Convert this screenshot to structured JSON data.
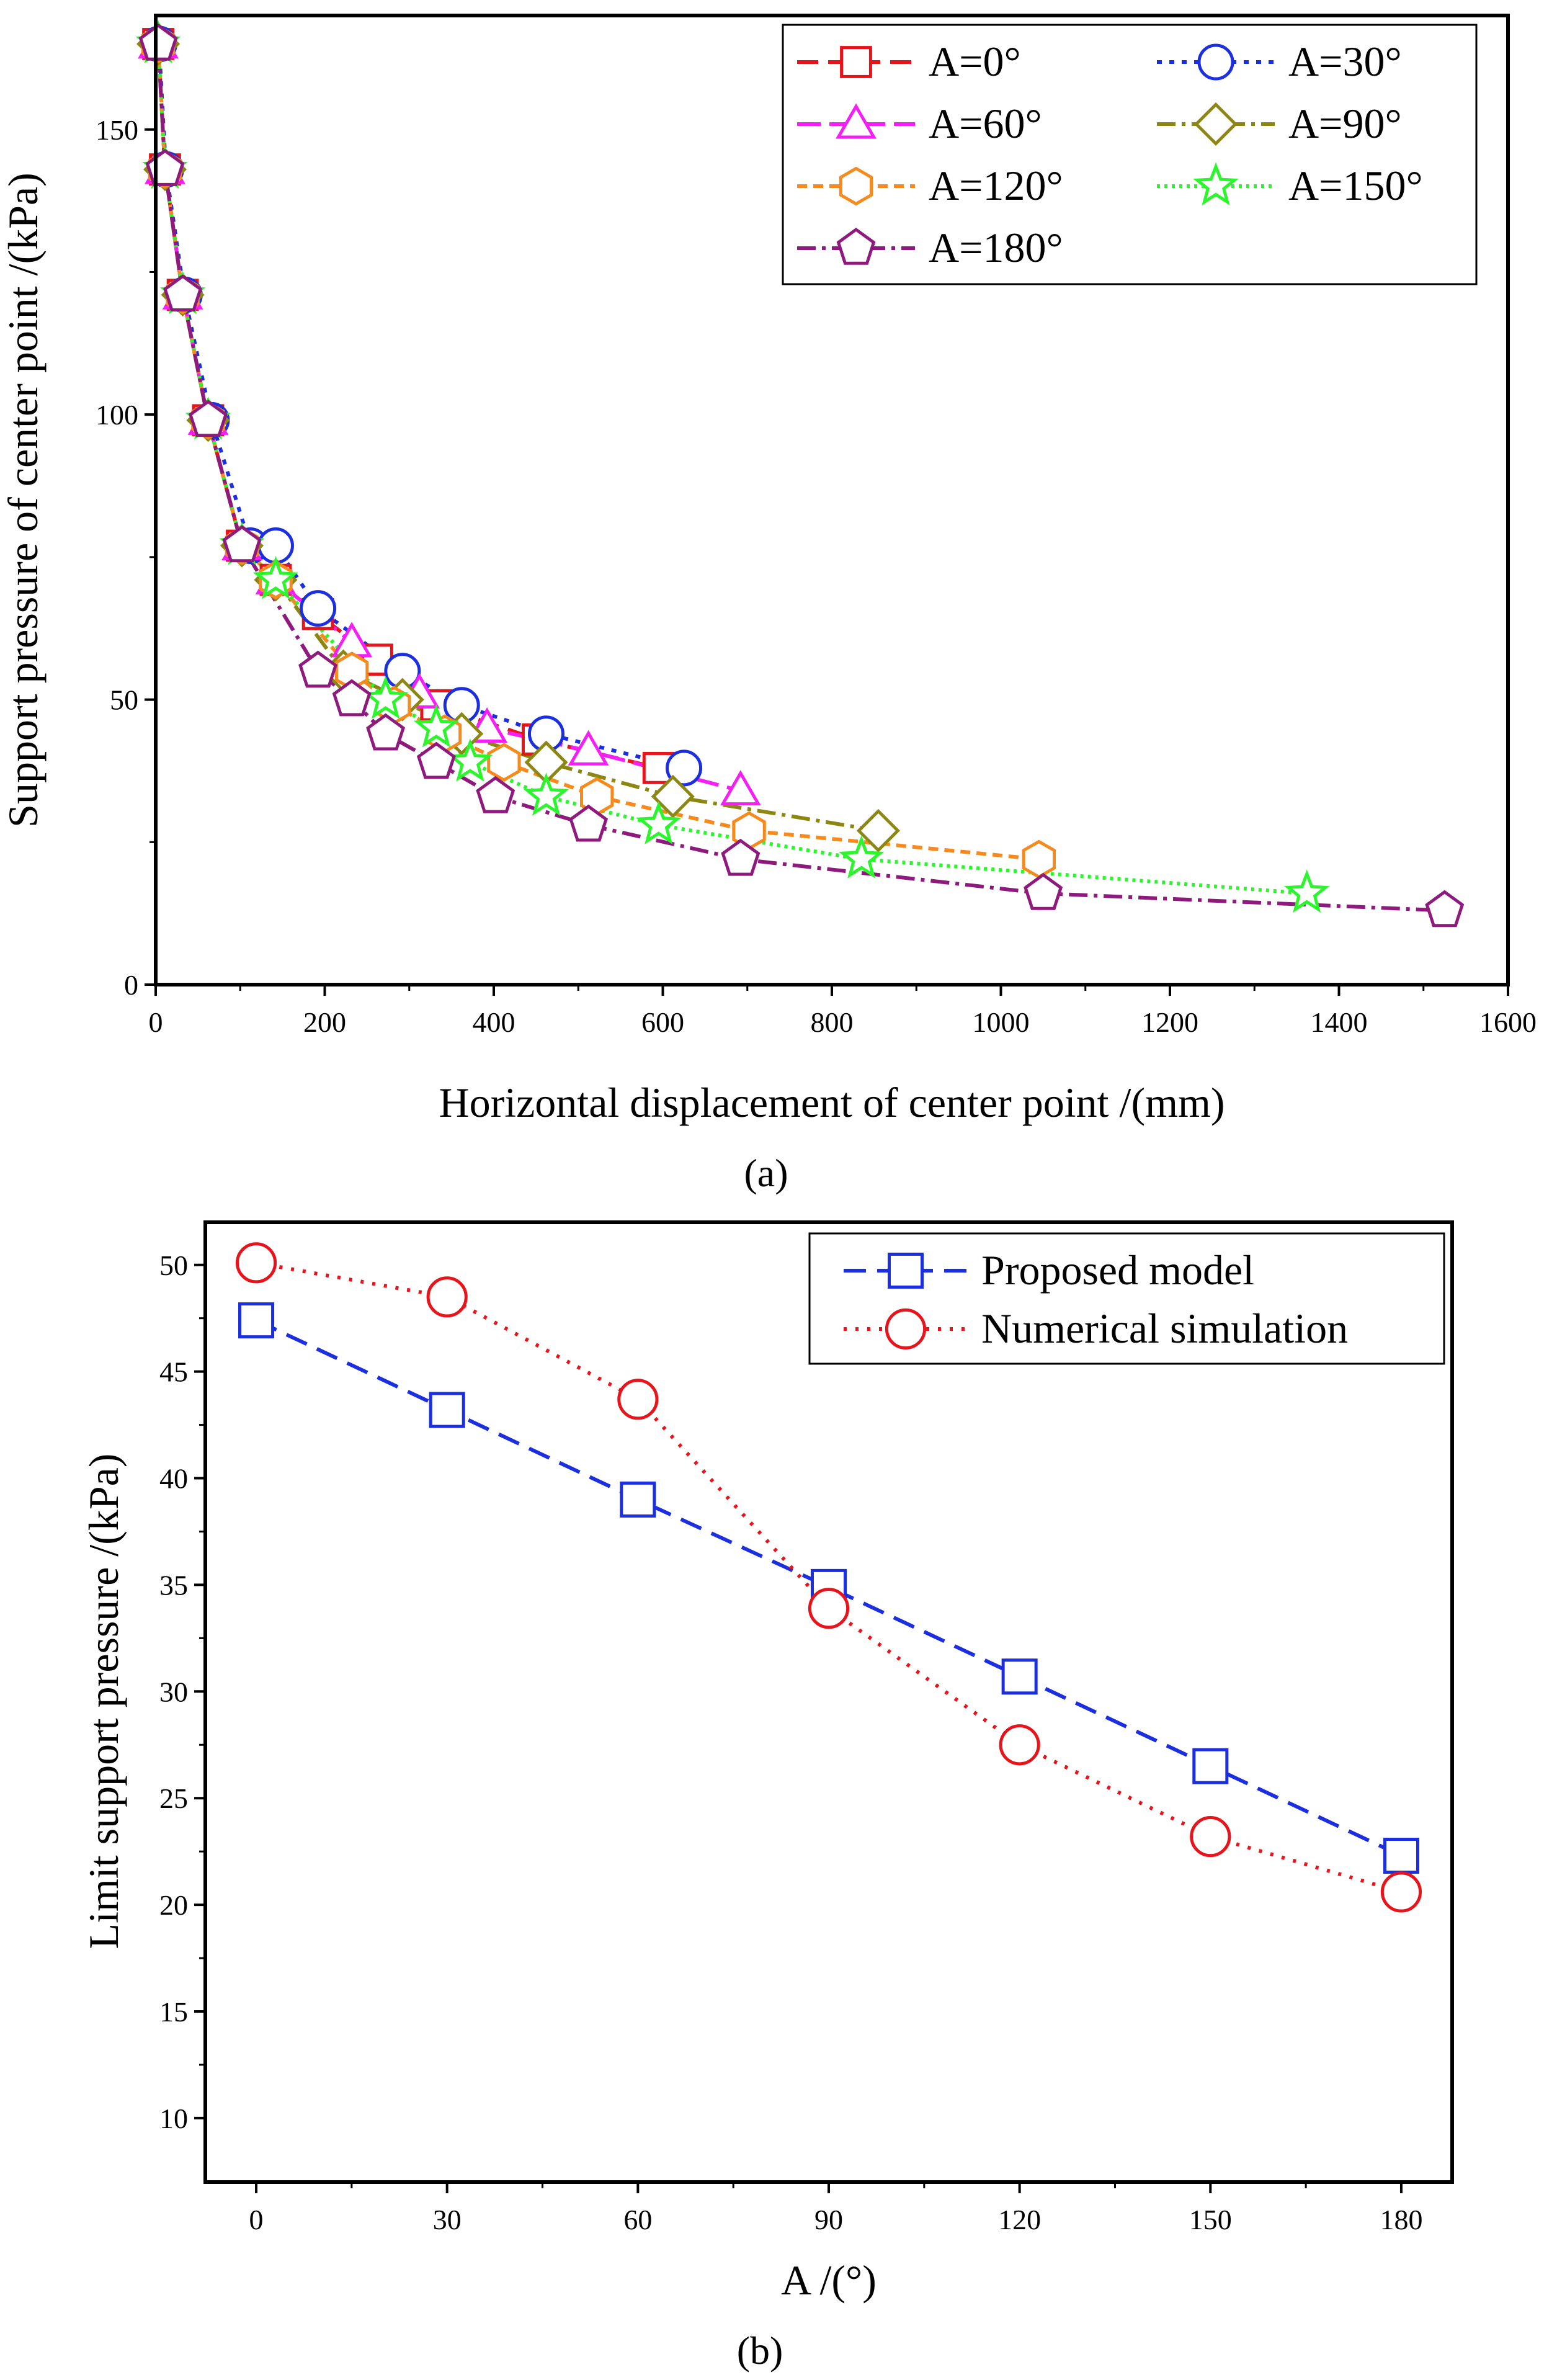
{
  "chart_data": [
    {
      "type": "line",
      "panel_label": "(a)",
      "xlabel": "Horizontal displacement of center point /(mm)",
      "ylabel": "Support pressure of center point /(kPa)",
      "xlim": [
        0,
        1600
      ],
      "ylim": [
        0,
        170
      ],
      "xticks": [
        0,
        200,
        400,
        600,
        800,
        1000,
        1200,
        1400,
        1600
      ],
      "yticks": [
        0,
        50,
        100,
        150
      ],
      "xtick_labels": [
        "0",
        "200",
        "400",
        "600",
        "800",
        "1000",
        "1200",
        "1400",
        "1600"
      ],
      "ytick_labels": [
        "0",
        "50",
        "100",
        "150"
      ],
      "legend_position": "top-right",
      "series": [
        {
          "name": "A=0°",
          "marker": "square",
          "color": "#e8141c",
          "dash": "34,16",
          "x": [
            3,
            11,
            32,
            62,
            102,
            142,
            192,
            262,
            332,
            452,
            595
          ],
          "y": [
            165,
            143,
            121,
            99,
            77,
            71,
            65,
            57,
            49,
            43,
            38
          ]
        },
        {
          "name": "A=30°",
          "marker": "circle",
          "color": "#1b2ee0",
          "dash": "8,12",
          "x": [
            4,
            12,
            34,
            66,
            112,
            142,
            192,
            292,
            362,
            462,
            625
          ],
          "y": [
            165,
            143,
            121,
            99,
            77,
            77,
            66,
            55,
            49,
            44,
            38
          ]
        },
        {
          "name": "A=60°",
          "marker": "triangle",
          "color": "#f51ff5",
          "dash": "38,14",
          "x": [
            3,
            11,
            32,
            62,
            102,
            142,
            232,
            312,
            392,
            512,
            692
          ],
          "y": [
            165,
            143,
            121,
            99,
            77,
            71,
            60,
            51,
            45,
            41,
            34
          ]
        },
        {
          "name": "A=90°",
          "marker": "diamond",
          "color": "#8b8712",
          "dash": "30,10,6,10",
          "x": [
            3,
            11,
            32,
            62,
            102,
            142,
            222,
            292,
            362,
            462,
            612,
            855
          ],
          "y": [
            165,
            143,
            121,
            99,
            77,
            71,
            55,
            50,
            44,
            39,
            33,
            27
          ]
        },
        {
          "name": "A=120°",
          "marker": "hexagon",
          "color": "#f78a1c",
          "dash": "16,10",
          "x": [
            3,
            11,
            32,
            62,
            102,
            142,
            232,
            282,
            342,
            412,
            522,
            702,
            1045
          ],
          "y": [
            165,
            143,
            121,
            99,
            77,
            71,
            55,
            49,
            44,
            39,
            33,
            27,
            22
          ]
        },
        {
          "name": "A=150°",
          "marker": "star",
          "color": "#2bf52b",
          "dash": "5,7",
          "x": [
            3,
            11,
            32,
            62,
            102,
            142,
            272,
            332,
            372,
            462,
            595,
            835,
            1362
          ],
          "y": [
            165,
            143,
            121,
            99,
            77,
            71,
            50,
            45,
            39,
            33,
            28,
            22,
            16
          ]
        },
        {
          "name": "A=180°",
          "marker": "pentagon",
          "color": "#8f1a7d",
          "dash": "30,10,6,10",
          "x": [
            3,
            11,
            32,
            62,
            102,
            192,
            232,
            272,
            332,
            402,
            512,
            692,
            1050,
            1525
          ],
          "y": [
            165,
            143,
            121,
            99,
            77,
            55,
            50,
            44,
            39,
            33,
            28,
            22,
            16,
            13
          ]
        }
      ]
    },
    {
      "type": "line",
      "panel_label": "(b)",
      "xlabel": "A /(°)",
      "ylabel": "Limit support pressure /(kPa)",
      "xlim": [
        -8,
        188
      ],
      "ylim": [
        7,
        52
      ],
      "xticks": [
        0,
        30,
        60,
        90,
        120,
        150,
        180
      ],
      "yticks": [
        10,
        15,
        20,
        25,
        30,
        35,
        40,
        45,
        50
      ],
      "xtick_labels": [
        "0",
        "30",
        "60",
        "90",
        "120",
        "150",
        "180"
      ],
      "ytick_labels": [
        "10",
        "15",
        "20",
        "25",
        "30",
        "35",
        "40",
        "45",
        "50"
      ],
      "legend_position": "top-right",
      "series": [
        {
          "name": "Proposed model",
          "marker": "square",
          "color": "#1b2ee0",
          "dash": "36,18",
          "x": [
            0,
            30,
            60,
            90,
            120,
            150,
            180
          ],
          "y": [
            47.4,
            43.2,
            39.0,
            34.9,
            30.7,
            26.5,
            22.3
          ]
        },
        {
          "name": "Numerical simulation",
          "marker": "circle",
          "color": "#e8141c",
          "dash": "5,14",
          "x": [
            0,
            30,
            60,
            90,
            120,
            150,
            180
          ],
          "y": [
            50.1,
            48.5,
            43.7,
            33.9,
            27.5,
            23.2,
            20.6
          ]
        }
      ]
    }
  ]
}
